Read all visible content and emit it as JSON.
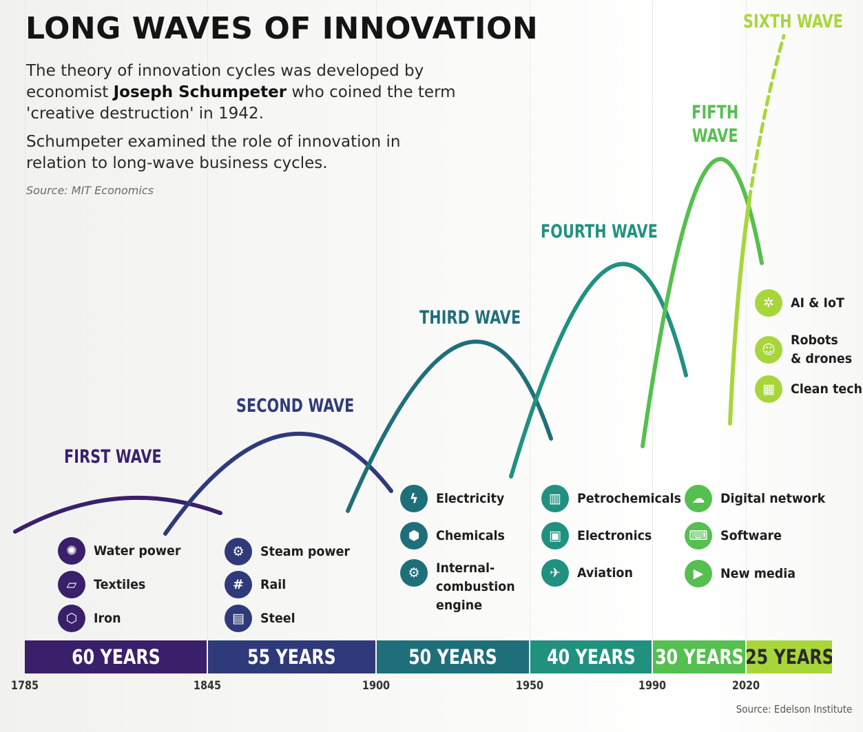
{
  "title": "LONG WAVES OF INNOVATION",
  "intro": {
    "line1_pre": "The theory of innovation cycles was developed by economist ",
    "line1_bold": "Joseph Schumpeter",
    "line1_post": " who coined the term 'creative destruction' in 1942.",
    "line2": "Schumpeter examined the role of innovation in relation to long-wave business cycles.",
    "source": "Source: MIT Economics"
  },
  "waves": [
    {
      "label": "FIRST WAVE",
      "color": "#3a1f6b",
      "years": "60 YEARS",
      "start": "1785",
      "items": [
        {
          "label": "Water power",
          "icon": "water-wheel-icon"
        },
        {
          "label": "Textiles",
          "icon": "fabric-icon"
        },
        {
          "label": "Iron",
          "icon": "iron-ingot-icon"
        }
      ]
    },
    {
      "label": "SECOND WAVE",
      "color": "#2f3a7a",
      "years": "55 YEARS",
      "start": "1845",
      "items": [
        {
          "label": "Steam power",
          "icon": "steam-engine-icon"
        },
        {
          "label": "Rail",
          "icon": "rail-track-icon"
        },
        {
          "label": "Steel",
          "icon": "steel-beam-icon"
        }
      ]
    },
    {
      "label": "THIRD WAVE",
      "color": "#1f6f7a",
      "years": "50 YEARS",
      "start": "1900",
      "items": [
        {
          "label": "Electricity",
          "icon": "lightning-icon"
        },
        {
          "label": "Chemicals",
          "icon": "molecule-icon"
        },
        {
          "label": "Internal-\ncombustion\nengine",
          "icon": "engine-icon"
        }
      ]
    },
    {
      "label": "FOURTH WAVE",
      "color": "#20917f",
      "years": "40 YEARS",
      "start": "1950",
      "items": [
        {
          "label": "Petrochemicals",
          "icon": "refinery-icon"
        },
        {
          "label": "Electronics",
          "icon": "chip-icon"
        },
        {
          "label": "Aviation",
          "icon": "airplane-icon"
        }
      ]
    },
    {
      "label": "FIFTH WAVE",
      "color": "#55bf4f",
      "years": "30 YEARS",
      "start": "1990",
      "items": [
        {
          "label": "Digital network",
          "icon": "cloud-network-icon"
        },
        {
          "label": "Software",
          "icon": "laptop-icon"
        },
        {
          "label": "New media",
          "icon": "video-screen-icon"
        }
      ]
    },
    {
      "label": "SIXTH WAVE",
      "color": "#a8d63a",
      "years": "25 YEARS",
      "start": "2020",
      "items": [
        {
          "label": "AI & IoT",
          "icon": "brain-icon"
        },
        {
          "label": "Robots\n& drones",
          "icon": "robot-icon"
        },
        {
          "label": "Clean tech",
          "icon": "solar-panel-icon"
        }
      ]
    }
  ],
  "colors": {
    "bar": [
      "#3a1f6b",
      "#2f3a7a",
      "#1f6f7a",
      "#20917f",
      "#55bf4f",
      "#a8d63a"
    ],
    "sixth_bar_text": "#2a2a2a"
  },
  "source": "Source: Edelson Institute"
}
